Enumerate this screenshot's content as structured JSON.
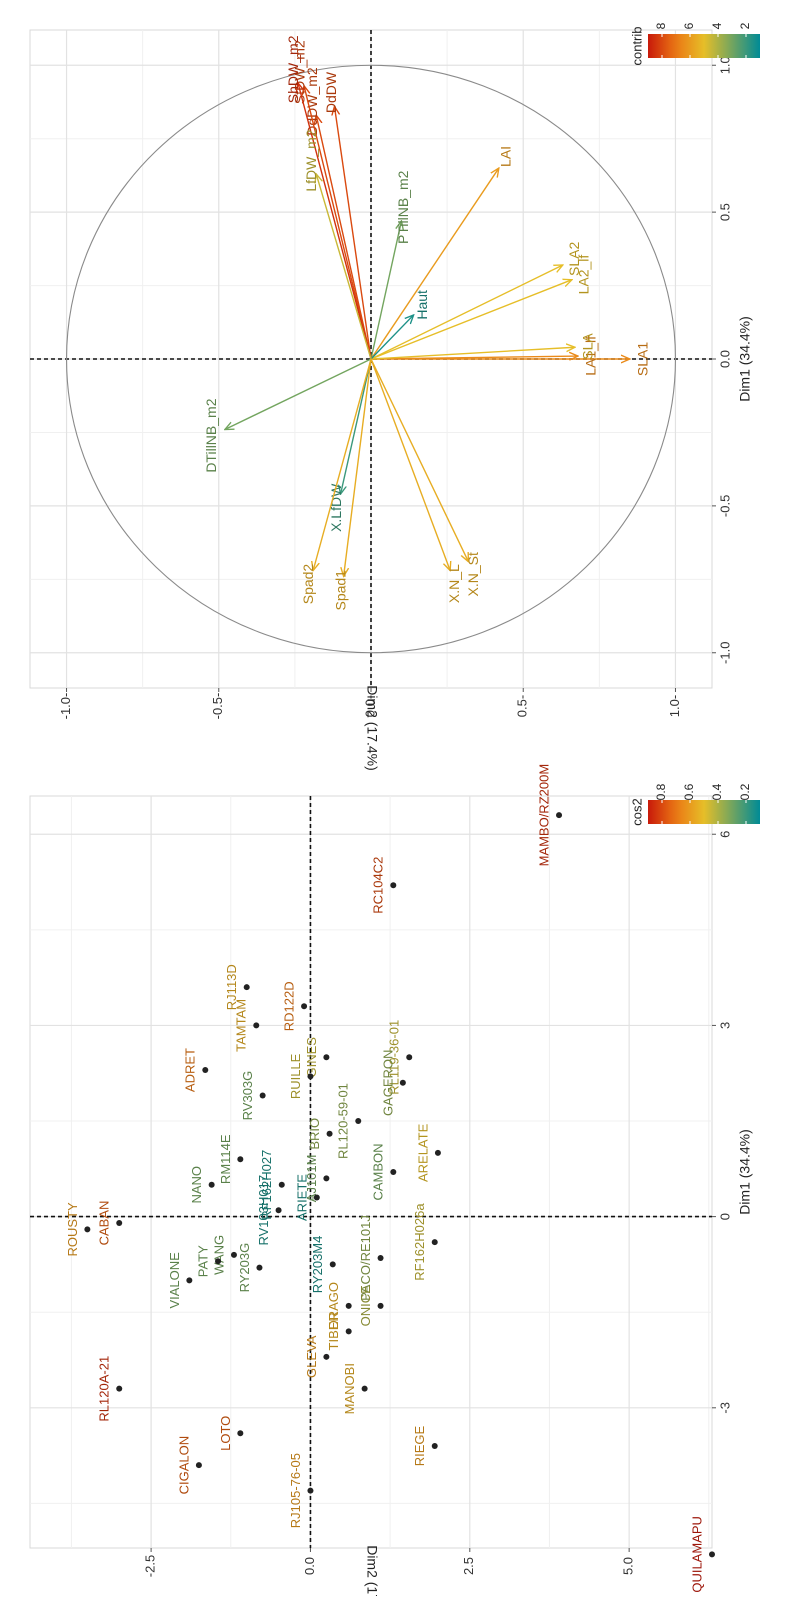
{
  "chart_data": [
    {
      "type": "scatter",
      "panel": "individuals",
      "xlabel": "Dim1 (34.4%)",
      "ylabel": "Dim2 (17.4%)",
      "xlim": [
        -5.2,
        6.6
      ],
      "ylim": [
        -4.4,
        6.3
      ],
      "x_ticks": [
        -3,
        0,
        3,
        6
      ],
      "y_ticks": [
        -2.5,
        0,
        2.5,
        5
      ],
      "x_tick_labels": [
        "-3",
        "0",
        "3",
        "6"
      ],
      "y_tick_labels": [
        "-2.5",
        "0.0",
        "2.5",
        "5.0"
      ],
      "grid": true,
      "legend": {
        "title": "cos2",
        "placement": "right",
        "ticks": [
          "0.8",
          "0.6",
          "0.4",
          "0.2"
        ],
        "tick_values": [
          0.8,
          0.6,
          0.4,
          0.2
        ],
        "range": [
          0.1,
          0.9
        ]
      },
      "points": [
        {
          "label": "QUILAMAPU",
          "x": -5.3,
          "y": 6.3,
          "cos2": 0.9
        },
        {
          "label": "MAMBO/RZ200M",
          "x": 6.3,
          "y": 3.9,
          "cos2": 0.85
        },
        {
          "label": "RC104C2",
          "x": 5.2,
          "y": 1.3,
          "cos2": 0.8
        },
        {
          "label": "RL119-36-01",
          "x": 2.5,
          "y": 1.55,
          "cos2": 0.45
        },
        {
          "label": "GINES",
          "x": 2.5,
          "y": 0.25,
          "cos2": 0.45
        },
        {
          "label": "GAGERON",
          "x": 2.1,
          "y": 1.45,
          "cos2": 0.35
        },
        {
          "label": "RUILLE",
          "x": 2.2,
          "y": 0.0,
          "cos2": 0.45
        },
        {
          "label": "RD122D",
          "x": 3.3,
          "y": -0.1,
          "cos2": 0.7
        },
        {
          "label": "RJ113D",
          "x": 3.6,
          "y": -1.0,
          "cos2": 0.55
        },
        {
          "label": "RV303G",
          "x": 1.9,
          "y": -0.75,
          "cos2": 0.3
        },
        {
          "label": "TAMTAM",
          "x": 3.0,
          "y": -0.85,
          "cos2": 0.55
        },
        {
          "label": "ADRET",
          "x": 2.3,
          "y": -1.65,
          "cos2": 0.7
        },
        {
          "label": "ARELATE",
          "x": 1.0,
          "y": 2.0,
          "cos2": 0.5
        },
        {
          "label": "CAMBON",
          "x": 0.7,
          "y": 1.3,
          "cos2": 0.3
        },
        {
          "label": "PACO/RE101J",
          "x": -0.65,
          "y": 1.1,
          "cos2": 0.35
        },
        {
          "label": "RL120-59-01",
          "x": 1.5,
          "y": 0.75,
          "cos2": 0.35
        },
        {
          "label": "BRIO",
          "x": 1.3,
          "y": 0.3,
          "cos2": 0.35
        },
        {
          "label": "AJ101M",
          "x": 0.6,
          "y": 0.25,
          "cos2": 0.3
        },
        {
          "label": "ARIETE",
          "x": 0.3,
          "y": 0.1,
          "cos2": 0.15
        },
        {
          "label": "RF162H027",
          "x": 0.5,
          "y": -0.45,
          "cos2": 0.15
        },
        {
          "label": "RM114E",
          "x": 0.9,
          "y": -1.1,
          "cos2": 0.3
        },
        {
          "label": "RV103H017",
          "x": 0.1,
          "y": -0.5,
          "cos2": 0.15
        },
        {
          "label": "RY203G",
          "x": -0.8,
          "y": -0.8,
          "cos2": 0.3
        },
        {
          "label": "WANG",
          "x": -0.6,
          "y": -1.2,
          "cos2": 0.3
        },
        {
          "label": "PATY",
          "x": -0.7,
          "y": -1.45,
          "cos2": 0.3
        },
        {
          "label": "NANO",
          "x": 0.5,
          "y": -1.55,
          "cos2": 0.3
        },
        {
          "label": "VIALONE",
          "x": -1.0,
          "y": -1.9,
          "cos2": 0.3
        },
        {
          "label": "CABAN",
          "x": -0.1,
          "y": -3.0,
          "cos2": 0.75
        },
        {
          "label": "ROUSTY",
          "x": -0.2,
          "y": -3.5,
          "cos2": 0.6
        },
        {
          "label": "RL120A-21",
          "x": -2.7,
          "y": -3.0,
          "cos2": 0.85
        },
        {
          "label": "RF162H026a",
          "x": -0.4,
          "y": 1.95,
          "cos2": 0.45
        },
        {
          "label": "ONICE",
          "x": -1.4,
          "y": 1.1,
          "cos2": 0.4
        },
        {
          "label": "DRAGO",
          "x": -1.4,
          "y": 0.6,
          "cos2": 0.55
        },
        {
          "label": "RY203M4",
          "x": -0.75,
          "y": 0.35,
          "cos2": 0.15
        },
        {
          "label": "TIBER",
          "x": -1.8,
          "y": 0.6,
          "cos2": 0.55
        },
        {
          "label": "MANOBI",
          "x": -2.7,
          "y": 0.85,
          "cos2": 0.55
        },
        {
          "label": "GLEVA",
          "x": -2.2,
          "y": 0.25,
          "cos2": 0.6
        },
        {
          "label": "RIEGE",
          "x": -3.6,
          "y": 1.95,
          "cos2": 0.6
        },
        {
          "label": "RJ105-76-05",
          "x": -4.3,
          "y": 0.0,
          "cos2": 0.6
        },
        {
          "label": "LOTO",
          "x": -3.4,
          "y": -1.1,
          "cos2": 0.75
        },
        {
          "label": "CIGALON",
          "x": -3.9,
          "y": -1.75,
          "cos2": 0.75
        }
      ]
    },
    {
      "type": "scatter",
      "panel": "variables",
      "xlabel": "Dim1 (34.4%)",
      "ylabel": "Dim2 (17.4%)",
      "xlim": [
        -1.12,
        1.12
      ],
      "ylim": [
        -1.12,
        1.12
      ],
      "x_ticks": [
        -1,
        -0.5,
        0,
        0.5,
        1
      ],
      "y_ticks": [
        -1,
        -0.5,
        0,
        0.5,
        1
      ],
      "x_tick_labels": [
        "-1.0",
        "-0.5",
        "0.0",
        "0.5",
        "1.0"
      ],
      "y_tick_labels": [
        "-1.0-",
        "-0.5-",
        "0.0-",
        "0.5-",
        "1.0-"
      ],
      "grid": true,
      "unit_circle": true,
      "legend": {
        "title": "contrib",
        "placement": "right",
        "ticks": [
          "8",
          "6",
          "4",
          "2"
        ],
        "tick_values": [
          8,
          6,
          4,
          2
        ],
        "range": [
          1,
          9
        ]
      },
      "arrows": [
        {
          "label": "SLA1",
          "x": 0.0,
          "y": 0.85,
          "contrib": 6.5
        },
        {
          "label": "LA1_lf",
          "x": 0.01,
          "y": 0.68,
          "contrib": 6.5
        },
        {
          "label": "SLA",
          "x": 0.04,
          "y": 0.67,
          "contrib": 5.0
        },
        {
          "label": "LA2_lf",
          "x": 0.27,
          "y": 0.66,
          "contrib": 5.0
        },
        {
          "label": "SLA2",
          "x": 0.32,
          "y": 0.63,
          "contrib": 5.0
        },
        {
          "label": "LAI",
          "x": 0.65,
          "y": 0.42,
          "contrib": 6.0
        },
        {
          "label": "Haut",
          "x": 0.15,
          "y": 0.14,
          "contrib": 1.5
        },
        {
          "label": "PTillNB_m2",
          "x": 0.47,
          "y": 0.1,
          "contrib": 3.0
        },
        {
          "label": "DdDW",
          "x": 0.86,
          "y": -0.12,
          "contrib": 8.0
        },
        {
          "label": "DdDW_m2",
          "x": 0.83,
          "y": -0.18,
          "contrib": 8.0
        },
        {
          "label": "StDW_m2",
          "x": 0.93,
          "y": -0.22,
          "contrib": 8.0
        },
        {
          "label": "ShDW_m2",
          "x": 0.94,
          "y": -0.24,
          "contrib": 8.5
        },
        {
          "label": "LfDW_m2",
          "x": 0.63,
          "y": -0.18,
          "contrib": 4.5
        },
        {
          "label": "DTillNB_m2",
          "x": -0.24,
          "y": -0.48,
          "contrib": 3.0
        },
        {
          "label": "X.LfDW",
          "x": -0.46,
          "y": -0.1,
          "contrib": 2.0
        },
        {
          "label": "Spad1",
          "x": -0.74,
          "y": -0.09,
          "contrib": 5.5
        },
        {
          "label": "Spad2",
          "x": -0.72,
          "y": -0.19,
          "contrib": 5.5
        },
        {
          "label": "X.N_St",
          "x": -0.69,
          "y": 0.32,
          "contrib": 5.5
        },
        {
          "label": "X.N_L",
          "x": -0.72,
          "y": 0.26,
          "contrib": 5.5
        }
      ]
    }
  ]
}
